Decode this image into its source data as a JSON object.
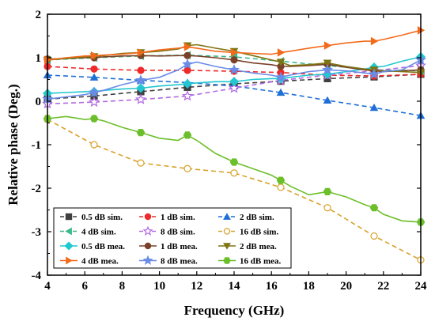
{
  "chart_data": {
    "type": "line",
    "title": "",
    "xlabel": "Frequency (GHz)",
    "ylabel": "Relative phase (Deg.)",
    "xlim": [
      4,
      24
    ],
    "ylim": [
      -4,
      2
    ],
    "xticks": [
      4,
      6,
      8,
      10,
      12,
      14,
      16,
      18,
      20,
      22,
      24
    ],
    "yticks": [
      -4,
      -3,
      -2,
      -1,
      0,
      1,
      2
    ],
    "grid": false,
    "legend_position": "bottom-left",
    "legend_columns": 3,
    "series": [
      {
        "name": "0.5 dB sim.",
        "color": "#404040",
        "marker": "square",
        "filled": true,
        "dashed": true,
        "x": [
          4,
          6.5,
          9,
          11.5,
          14,
          16.5,
          19,
          21.5,
          24
        ],
        "y": [
          0.05,
          0.12,
          0.22,
          0.32,
          0.4,
          0.46,
          0.52,
          0.56,
          0.62
        ]
      },
      {
        "name": "1 dB sim.",
        "color": "#ee2a2a",
        "marker": "circle",
        "filled": true,
        "dashed": true,
        "x": [
          4,
          6.5,
          9,
          11.5,
          14,
          16.5,
          19,
          21.5,
          24
        ],
        "y": [
          0.8,
          0.74,
          0.71,
          0.71,
          0.69,
          0.66,
          0.6,
          0.58,
          0.62
        ]
      },
      {
        "name": "2 dB sim.",
        "color": "#1f6fd6",
        "marker": "triangle",
        "filled": true,
        "dashed": true,
        "x": [
          4,
          6.5,
          9,
          11.5,
          14,
          16.5,
          19,
          21.5,
          24
        ],
        "y": [
          0.6,
          0.55,
          0.48,
          0.43,
          0.35,
          0.2,
          0.02,
          -0.15,
          -0.33
        ]
      },
      {
        "name": "4 dB sim.",
        "color": "#3cb88a",
        "marker": "triangle-left",
        "filled": true,
        "dashed": true,
        "x": [
          4,
          6.5,
          9,
          11.5,
          14,
          16.5,
          19,
          21.5,
          24
        ],
        "y": [
          0.95,
          1.0,
          1.04,
          1.06,
          1.02,
          0.92,
          0.82,
          0.72,
          0.7
        ]
      },
      {
        "name": "8 dB sim.",
        "color": "#b36ae3",
        "marker": "star",
        "filled": false,
        "dashed": true,
        "x": [
          4,
          6.5,
          9,
          11.5,
          14,
          16.5,
          19,
          21.5,
          24
        ],
        "y": [
          -0.06,
          -0.02,
          0.04,
          0.12,
          0.3,
          0.48,
          0.6,
          0.7,
          0.82
        ]
      },
      {
        "name": "16 dB sim.",
        "color": "#d9a22b",
        "marker": "circle",
        "filled": false,
        "dashed": true,
        "x": [
          4,
          6.5,
          9,
          11.5,
          14,
          16.5,
          19,
          21.5,
          24
        ],
        "y": [
          -0.42,
          -1.0,
          -1.42,
          -1.55,
          -1.65,
          -1.98,
          -2.45,
          -3.1,
          -3.65
        ]
      },
      {
        "name": "0.5 dB mea.",
        "color": "#22c7cf",
        "marker": "diamond",
        "filled": true,
        "dashed": false,
        "x": [
          4,
          5,
          6,
          6.5,
          7,
          8,
          9,
          10,
          11,
          11.5,
          12,
          13,
          14,
          15,
          16,
          16.5,
          17,
          18,
          19,
          20,
          21,
          21.5,
          22,
          23,
          24
        ],
        "y": [
          0.18,
          0.2,
          0.22,
          0.22,
          0.25,
          0.28,
          0.3,
          0.35,
          0.38,
          0.4,
          0.42,
          0.45,
          0.45,
          0.5,
          0.52,
          0.52,
          0.55,
          0.6,
          0.62,
          0.68,
          0.74,
          0.78,
          0.8,
          0.92,
          1.02
        ]
      },
      {
        "name": "1 dB mea.",
        "color": "#7a4129",
        "marker": "circle",
        "filled": true,
        "dashed": false,
        "x": [
          4,
          5,
          6,
          6.5,
          7,
          8,
          9,
          10,
          11,
          11.5,
          12,
          13,
          14,
          15,
          16,
          16.5,
          17,
          18,
          19,
          20,
          21,
          21.5,
          22,
          23,
          24
        ],
        "y": [
          0.97,
          0.98,
          1.0,
          1.0,
          1.02,
          1.04,
          1.05,
          1.04,
          1.05,
          1.05,
          1.04,
          1.0,
          0.95,
          0.88,
          0.84,
          0.8,
          0.8,
          0.82,
          0.85,
          0.78,
          0.72,
          0.7,
          0.68,
          0.7,
          0.72
        ]
      },
      {
        "name": "2 dB mea.",
        "color": "#7f7412",
        "marker": "triangle-down",
        "filled": true,
        "dashed": false,
        "x": [
          4,
          5,
          6,
          6.5,
          7,
          8,
          9,
          10,
          11,
          11.5,
          12,
          13,
          14,
          15,
          16,
          16.5,
          17,
          18,
          19,
          20,
          21,
          21.5,
          22,
          23,
          24
        ],
        "y": [
          0.95,
          0.98,
          1.02,
          1.03,
          1.05,
          1.1,
          1.12,
          1.15,
          1.2,
          1.28,
          1.3,
          1.22,
          1.15,
          1.05,
          0.95,
          0.9,
          0.82,
          0.84,
          0.88,
          0.8,
          0.74,
          0.72,
          0.7,
          0.68,
          0.66
        ]
      },
      {
        "name": "4 dB mea.",
        "color": "#f26a1b",
        "marker": "triangle-right",
        "filled": true,
        "dashed": false,
        "x": [
          4,
          5,
          6,
          6.5,
          7,
          8,
          9,
          10,
          11,
          11.5,
          12,
          13,
          14,
          15,
          16,
          16.5,
          17,
          18,
          19,
          20,
          21,
          21.5,
          22,
          23,
          24
        ],
        "y": [
          0.95,
          1.0,
          1.04,
          1.05,
          1.06,
          1.08,
          1.12,
          1.18,
          1.22,
          1.25,
          1.22,
          1.15,
          1.12,
          1.1,
          1.08,
          1.12,
          1.15,
          1.22,
          1.28,
          1.34,
          1.38,
          1.38,
          1.42,
          1.52,
          1.63
        ]
      },
      {
        "name": "8 dB mea.",
        "color": "#6a8ce6",
        "marker": "star",
        "filled": true,
        "dashed": false,
        "x": [
          4,
          5,
          6,
          6.5,
          7,
          8,
          9,
          10,
          11,
          11.5,
          12,
          13,
          14,
          15,
          16,
          16.5,
          17,
          18,
          19,
          20,
          21,
          21.5,
          22,
          23,
          24
        ],
        "y": [
          0.05,
          0.1,
          0.15,
          0.2,
          0.25,
          0.38,
          0.48,
          0.55,
          0.72,
          0.85,
          0.9,
          0.8,
          0.72,
          0.65,
          0.6,
          0.55,
          0.6,
          0.68,
          0.72,
          0.7,
          0.65,
          0.62,
          0.68,
          0.72,
          0.95
        ]
      },
      {
        "name": "16 dB mea.",
        "color": "#6cbf2b",
        "marker": "hexagon",
        "filled": true,
        "dashed": false,
        "x": [
          4,
          5,
          6,
          6.5,
          7,
          8,
          9,
          10,
          11,
          11.5,
          12,
          13,
          14,
          15,
          16,
          16.5,
          17,
          18,
          19,
          20,
          21,
          21.5,
          22,
          23,
          24
        ],
        "y": [
          -0.4,
          -0.35,
          -0.42,
          -0.4,
          -0.45,
          -0.6,
          -0.72,
          -0.85,
          -0.9,
          -0.78,
          -0.9,
          -1.2,
          -1.4,
          -1.55,
          -1.7,
          -1.82,
          -1.95,
          -2.15,
          -2.08,
          -2.2,
          -2.38,
          -2.45,
          -2.6,
          -2.75,
          -2.78
        ]
      }
    ]
  }
}
